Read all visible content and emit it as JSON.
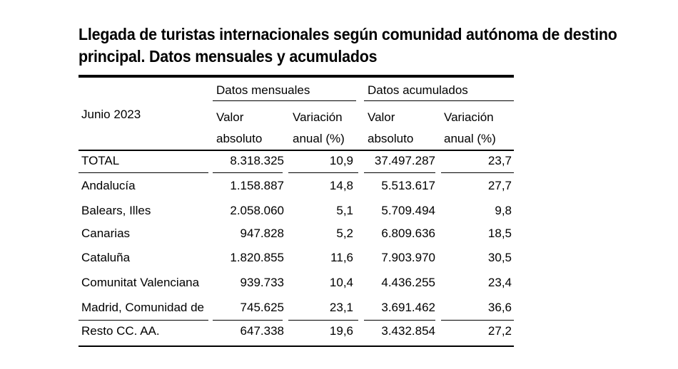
{
  "title": {
    "line1": "Llegada de turistas internacionales según comunidad autónoma de destino",
    "line2": "principal. Datos mensuales y acumulados"
  },
  "table": {
    "period_label": "Junio 2023",
    "group_headers": {
      "monthly": "Datos mensuales",
      "cumulative": "Datos acumulados"
    },
    "column_headers": {
      "valor_l1": "Valor",
      "valor_l2": "absoluto",
      "variacion_l1": "Variación",
      "variacion_l2": "anual (%)"
    },
    "rows": [
      {
        "region": "TOTAL",
        "monthly_value": "8.318.325",
        "monthly_change": "10,9",
        "cumulative_value": "37.497.287",
        "cumulative_change": "23,7"
      },
      {
        "region": "Andalucía",
        "monthly_value": "1.158.887",
        "monthly_change": "14,8",
        "cumulative_value": "5.513.617",
        "cumulative_change": "27,7"
      },
      {
        "region": "Balears, Illes",
        "monthly_value": "2.058.060",
        "monthly_change": "5,1",
        "cumulative_value": "5.709.494",
        "cumulative_change": "9,8"
      },
      {
        "region": "Canarias",
        "monthly_value": "947.828",
        "monthly_change": "5,2",
        "cumulative_value": "6.809.636",
        "cumulative_change": "18,5"
      },
      {
        "region": "Cataluña",
        "monthly_value": "1.820.855",
        "monthly_change": "11,6",
        "cumulative_value": "7.903.970",
        "cumulative_change": "30,5"
      },
      {
        "region": "Comunitat Valenciana",
        "monthly_value": "939.733",
        "monthly_change": "10,4",
        "cumulative_value": "4.436.255",
        "cumulative_change": "23,4"
      },
      {
        "region": "Madrid, Comunidad de",
        "monthly_value": "745.625",
        "monthly_change": "23,1",
        "cumulative_value": "3.691.462",
        "cumulative_change": "36,6"
      },
      {
        "region": "Resto CC. AA.",
        "monthly_value": "647.338",
        "monthly_change": "19,6",
        "cumulative_value": "3.432.854",
        "cumulative_change": "27,2"
      }
    ]
  }
}
